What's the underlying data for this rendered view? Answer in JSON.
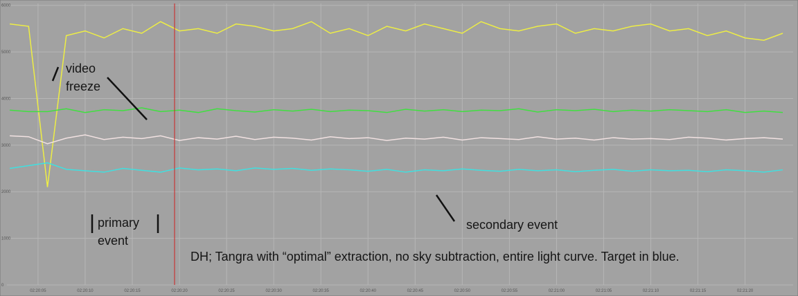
{
  "chart_data": {
    "type": "line",
    "x": [
      2,
      4,
      6,
      8,
      10,
      12,
      14,
      16,
      18,
      20,
      22,
      24,
      26,
      28,
      30,
      32,
      34,
      36,
      38,
      40,
      42,
      44,
      46,
      48,
      50,
      52,
      54,
      56,
      58,
      60,
      62,
      64,
      66,
      68,
      70,
      72,
      74,
      76,
      78,
      80,
      82,
      84
    ],
    "series": [
      {
        "name": "yellow",
        "color": "#eeee44",
        "values": [
          5600,
          5550,
          2100,
          5350,
          5450,
          5300,
          5500,
          5400,
          5650,
          5450,
          5500,
          5400,
          5600,
          5550,
          5450,
          5500,
          5650,
          5400,
          5500,
          5350,
          5550,
          5450,
          5600,
          5500,
          5400,
          5650,
          5500,
          5450,
          5550,
          5600,
          5400,
          5500,
          5450,
          5550,
          5600,
          5450,
          5500,
          5350,
          5450,
          5300,
          5250,
          5400
        ]
      },
      {
        "name": "green",
        "color": "#3fe03f",
        "values": [
          3750,
          3720,
          3720,
          3780,
          3700,
          3760,
          3740,
          3800,
          3720,
          3750,
          3700,
          3780,
          3740,
          3710,
          3760,
          3730,
          3770,
          3720,
          3750,
          3740,
          3700,
          3770,
          3730,
          3760,
          3720,
          3750,
          3740,
          3780,
          3710,
          3760,
          3740,
          3770,
          3720,
          3750,
          3730,
          3760,
          3740,
          3720,
          3760,
          3700,
          3730,
          3700
        ]
      },
      {
        "name": "white",
        "color": "#f2e2e2",
        "values": [
          3200,
          3180,
          3030,
          3150,
          3220,
          3120,
          3170,
          3140,
          3200,
          3100,
          3160,
          3130,
          3190,
          3120,
          3170,
          3150,
          3110,
          3180,
          3140,
          3160,
          3100,
          3150,
          3130,
          3170,
          3110,
          3160,
          3140,
          3120,
          3180,
          3130,
          3150,
          3110,
          3160,
          3130,
          3140,
          3120,
          3170,
          3150,
          3110,
          3140,
          3160,
          3130
        ]
      },
      {
        "name": "blue",
        "color": "#3fe0e0",
        "values": [
          2500,
          2560,
          2620,
          2480,
          2450,
          2420,
          2500,
          2460,
          2420,
          2510,
          2470,
          2490,
          2450,
          2510,
          2480,
          2500,
          2460,
          2490,
          2470,
          2440,
          2480,
          2420,
          2470,
          2450,
          2490,
          2460,
          2440,
          2480,
          2450,
          2470,
          2430,
          2460,
          2480,
          2440,
          2470,
          2450,
          2460,
          2430,
          2470,
          2450,
          2420,
          2470
        ]
      }
    ],
    "xlim": [
      1.7,
      85.1
    ],
    "xticks": [
      {
        "value": 5,
        "label": "02:20:05"
      },
      {
        "value": 10,
        "label": "02:20:10"
      },
      {
        "value": 15,
        "label": "02:20:15"
      },
      {
        "value": 20,
        "label": "02:20:20"
      },
      {
        "value": 25,
        "label": "02:20:25"
      },
      {
        "value": 30,
        "label": "02:20:30"
      },
      {
        "value": 35,
        "label": "02:20:35"
      },
      {
        "value": 40,
        "label": "02:20:40"
      },
      {
        "value": 45,
        "label": "02:20:45"
      },
      {
        "value": 50,
        "label": "02:20:50"
      },
      {
        "value": 55,
        "label": "02:20:55"
      },
      {
        "value": 60,
        "label": "02:21:00"
      },
      {
        "value": 65,
        "label": "02:21:05"
      },
      {
        "value": 70,
        "label": "02:21:10"
      },
      {
        "value": 75,
        "label": "02:21:15"
      },
      {
        "value": 80,
        "label": "02:21:20"
      }
    ],
    "ylim": [
      0,
      6040
    ],
    "yticks": [
      0,
      1000,
      2000,
      3000,
      4000,
      5000,
      6000
    ],
    "grid": true,
    "annotations": [
      "video freeze",
      "primary event",
      "secondary event",
      "DH; Tangra with “optimal” extraction, no sky subtraction, entire light curve. Target in blue."
    ]
  }
}
